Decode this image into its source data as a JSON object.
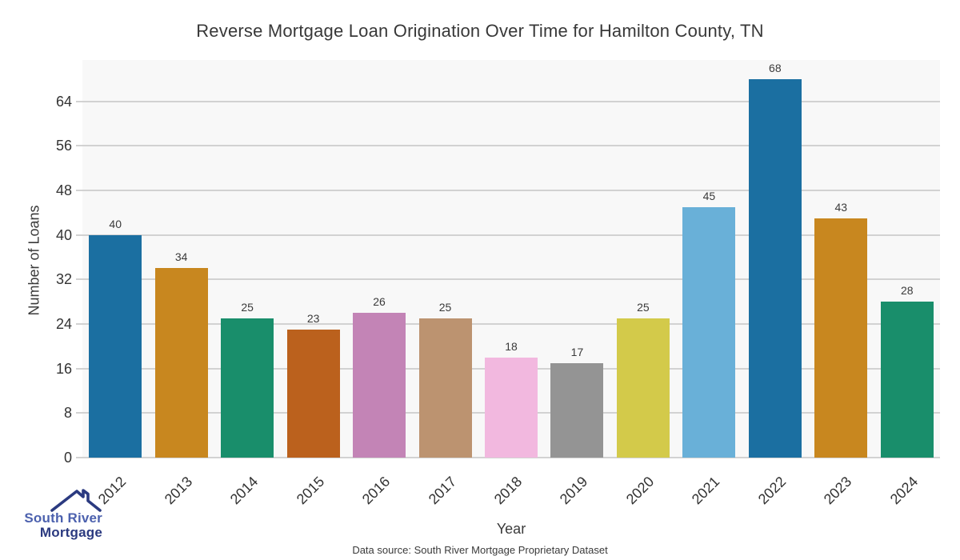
{
  "title": "Reverse Mortgage Loan Origination Over Time for Hamilton County, TN",
  "chart_data": {
    "type": "bar",
    "categories": [
      "2012",
      "2013",
      "2014",
      "2015",
      "2016",
      "2017",
      "2018",
      "2019",
      "2020",
      "2021",
      "2022",
      "2023",
      "2024"
    ],
    "values": [
      40,
      34,
      25,
      23,
      26,
      25,
      18,
      17,
      25,
      45,
      68,
      43,
      28
    ],
    "bar_colors": [
      "#1b6fa1",
      "#c8871f",
      "#198e6b",
      "#bb611d",
      "#c384b6",
      "#bc9370",
      "#f2b8df",
      "#949494",
      "#d3ca4a",
      "#69b0d8",
      "#1b6fa1",
      "#c8871f",
      "#198e6b"
    ],
    "title": "Reverse Mortgage Loan Origination Over Time for Hamilton County, TN",
    "xlabel": "Year",
    "ylabel": "Number of Loans",
    "yticks": [
      0,
      8,
      16,
      24,
      32,
      40,
      48,
      56,
      64
    ],
    "ylim": [
      0,
      71.4
    ],
    "grid": "horizontal",
    "legend": "none",
    "plot_background": "#f8f8f8",
    "grid_color": "#d2d2d2",
    "bar_width_frac": 0.8
  },
  "caption": "Data source: South River Mortgage Proprietary Dataset",
  "logo": {
    "line1": "South River",
    "line2": "Mortgage",
    "icon": "house-roof-icon",
    "color_line1": "#4c61ae",
    "color_line2": "#2b3a80"
  }
}
